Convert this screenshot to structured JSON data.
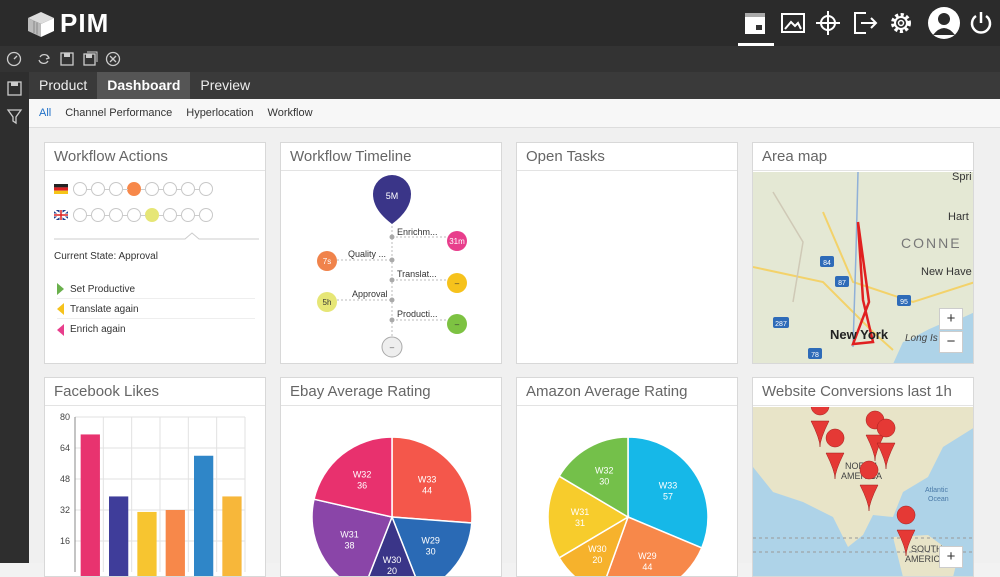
{
  "app": {
    "name": "PIM"
  },
  "tabs": [
    {
      "label": "Product"
    },
    {
      "label": "Dashboard"
    },
    {
      "label": "Preview"
    }
  ],
  "subtabs": [
    {
      "label": "All"
    },
    {
      "label": "Channel Performance"
    },
    {
      "label": "Hyperlocation"
    },
    {
      "label": "Workflow"
    }
  ],
  "widgets": {
    "workflow_actions": {
      "title": "Workflow Actions",
      "current_state": "Current State: Approval",
      "actions": [
        {
          "label": "Set Productive",
          "color": "#6ab04c"
        },
        {
          "label": "Translate again",
          "color": "#f6c21c"
        },
        {
          "label": "Enrich again",
          "color": "#e83e8c"
        }
      ]
    },
    "workflow_timeline": {
      "title": "Workflow Timeline",
      "top_badge": "5M",
      "steps": [
        {
          "label": "Enrichm...",
          "badge": "31m",
          "color": "#e83e8c"
        },
        {
          "label": "Quality ...",
          "badge": "7s",
          "color": "#f0834b"
        },
        {
          "label": "Translat...",
          "badge": "–",
          "color": "#f6c21c"
        },
        {
          "label": "Approval",
          "badge": "5h",
          "color": "#e6e676"
        },
        {
          "label": "Producti...",
          "badge": "–",
          "color": "#7dc242"
        }
      ],
      "end_badge": "–"
    },
    "open_tasks": {
      "title": "Open Tasks"
    },
    "area_map": {
      "title": "Area map",
      "labels": [
        "Spri",
        "Hart",
        "CONNE",
        "New Have",
        "New York",
        "Long Is"
      ],
      "highways": [
        "84",
        "87",
        "95",
        "287",
        "78"
      ],
      "zoom_in": "+",
      "zoom_out": "−"
    },
    "facebook_likes": {
      "title": "Facebook Likes"
    },
    "ebay_rating": {
      "title": "Ebay Average Rating"
    },
    "amazon_rating": {
      "title": "Amazon Average Rating"
    },
    "website_conversions": {
      "title": "Website Conversions last 1h",
      "labels": [
        "NORTH",
        "AMERICA",
        "Atlantic",
        "Ocean",
        "SOUTH",
        "AMERICA"
      ],
      "zoom_in": "+"
    }
  },
  "chart_data": [
    {
      "type": "bar",
      "title": "Facebook Likes",
      "yticks": [
        16,
        32,
        48,
        64,
        80
      ],
      "ylim": [
        0,
        80
      ],
      "values": [
        71,
        39,
        31,
        32,
        60,
        39
      ],
      "colors": [
        "#e8336f",
        "#3f3d9a",
        "#f7c530",
        "#f7884a",
        "#2f86c8",
        "#f7b73a"
      ]
    },
    {
      "type": "pie",
      "title": "Ebay Average Rating",
      "slices": [
        {
          "label": "W33",
          "value": 44,
          "color": "#f4574b"
        },
        {
          "label": "W29",
          "value": 30,
          "color": "#2a6ab5"
        },
        {
          "label": "W30",
          "value": 20,
          "color": "#3a3588"
        },
        {
          "label": "W31",
          "value": 38,
          "color": "#8a45a8"
        },
        {
          "label": "W32",
          "value": 36,
          "color": "#e8316e"
        }
      ]
    },
    {
      "type": "pie",
      "title": "Amazon Average Rating",
      "slices": [
        {
          "label": "W33",
          "value": 57,
          "color": "#16b8e8"
        },
        {
          "label": "W29",
          "value": 44,
          "color": "#f7884a"
        },
        {
          "label": "W30",
          "value": 20,
          "color": "#f6b22c"
        },
        {
          "label": "W31",
          "value": 31,
          "color": "#f7cc2c"
        },
        {
          "label": "W32",
          "value": 30,
          "color": "#74c04a"
        }
      ]
    }
  ]
}
